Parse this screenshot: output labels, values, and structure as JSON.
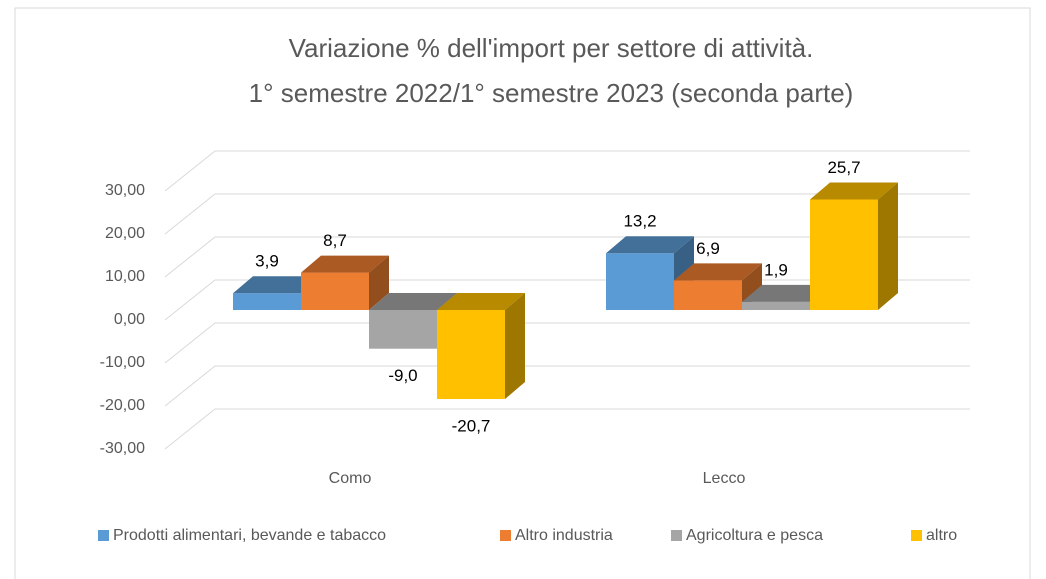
{
  "chart_data": {
    "type": "bar3d",
    "title": [
      "Variazione % dell'import per settore di attività.",
      "1° semestre 2022/1° semestre 2023 (seconda parte)"
    ],
    "categories": [
      "Como",
      "Lecco"
    ],
    "series": [
      {
        "name": "Prodotti alimentari, bevande e tabacco",
        "color": "#5b9bd5",
        "values": [
          3.9,
          13.2
        ],
        "value_labels": [
          "3,9",
          "13,2"
        ]
      },
      {
        "name": "Altro industria",
        "color": "#ed7d31",
        "values": [
          8.7,
          6.9
        ],
        "value_labels": [
          "8,7",
          "6,9"
        ]
      },
      {
        "name": "Agricoltura e pesca",
        "color": "#a5a5a5",
        "values": [
          -9.0,
          1.9
        ],
        "value_labels": [
          "-9,0",
          "1,9"
        ]
      },
      {
        "name": "altro",
        "color": "#ffc000",
        "values": [
          -20.7,
          25.7
        ],
        "value_labels": [
          "-20,7",
          "25,7"
        ]
      }
    ],
    "ylim": [
      -30,
      30
    ],
    "yticks": [
      {
        "value": -30,
        "label": "-30,00"
      },
      {
        "value": -20,
        "label": "-20,00"
      },
      {
        "value": -10,
        "label": "-10,00"
      },
      {
        "value": 0,
        "label": "0,00"
      },
      {
        "value": 10,
        "label": "10,00"
      },
      {
        "value": 20,
        "label": "20,00"
      },
      {
        "value": 30,
        "label": "30,00"
      }
    ],
    "grid": true,
    "legend": "bottom"
  }
}
